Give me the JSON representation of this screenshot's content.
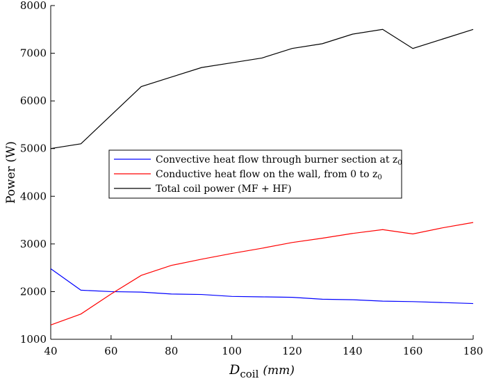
{
  "chart_data": {
    "type": "line",
    "ylabel": "Power (W)",
    "xlabel_main": "D",
    "xlabel_sub": "coil",
    "xlabel_unit": "(mm)",
    "xlim": [
      40,
      180
    ],
    "ylim": [
      1000,
      8000
    ],
    "xticks": [
      40,
      60,
      80,
      100,
      120,
      140,
      160,
      180
    ],
    "yticks": [
      1000,
      2000,
      3000,
      4000,
      5000,
      6000,
      7000,
      8000
    ],
    "grid": false,
    "legend_position": "center-left",
    "x": [
      40,
      50,
      60,
      70,
      80,
      90,
      100,
      110,
      120,
      130,
      140,
      150,
      160,
      170,
      180
    ],
    "series": [
      {
        "name": "Convective heat flow through burner section at z",
        "name_sub": "0",
        "color": "#0000ff",
        "values": [
          2480,
          2030,
          2000,
          1990,
          1950,
          1940,
          1900,
          1890,
          1880,
          1840,
          1830,
          1800,
          1790,
          1770,
          1750
        ]
      },
      {
        "name": "Conductive heat flow on the wall, from 0 to z",
        "name_sub": "0",
        "color": "#ff0000",
        "values": [
          1300,
          1530,
          1950,
          2340,
          2550,
          2680,
          2800,
          2910,
          3030,
          3120,
          3220,
          3300,
          3210,
          3340,
          3450
        ]
      },
      {
        "name": "Total coil power (MF + HF)",
        "name_sub": "",
        "color": "#000000",
        "values": [
          5000,
          5100,
          5700,
          6300,
          6500,
          6700,
          6800,
          6900,
          7100,
          7200,
          7400,
          7500,
          7100,
          7300,
          7500
        ]
      }
    ]
  }
}
